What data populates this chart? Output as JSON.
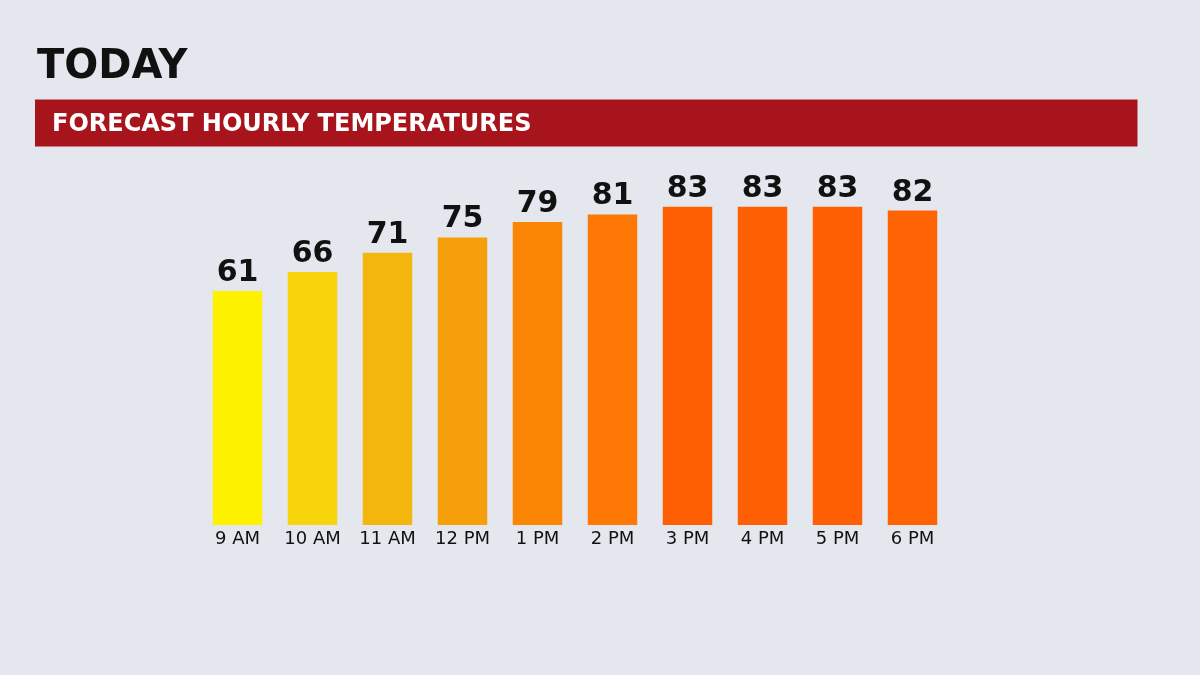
{
  "chart_data": {
    "type": "bar",
    "title": "TODAY",
    "subtitle": "FORECAST HOURLY TEMPERATURES",
    "categories": [
      "9 AM",
      "10 AM",
      "11 AM",
      "12 PM",
      "1 PM",
      "2 PM",
      "3 PM",
      "4 PM",
      "5 PM",
      "6 PM"
    ],
    "values": [
      61,
      66,
      71,
      75,
      79,
      81,
      83,
      83,
      83,
      82
    ],
    "colors": [
      "#fff200",
      "#f7d50a",
      "#f2b60c",
      "#f59f0a",
      "#fb8606",
      "#fd7804",
      "#fe5f02",
      "#fe5f02",
      "#fe5f02",
      "#fe6403"
    ],
    "data_labels": true,
    "tick_labels": "x",
    "grid": false,
    "legend": false
  }
}
